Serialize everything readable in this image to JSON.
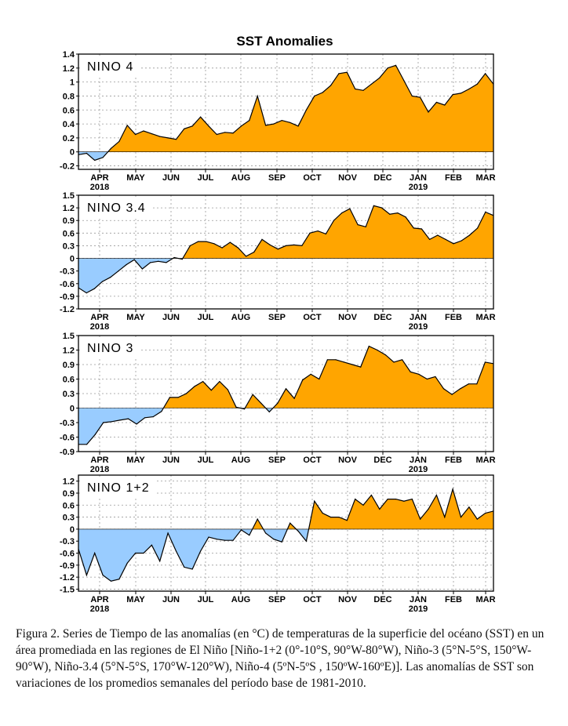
{
  "figure": {
    "title": "SST Anomalies",
    "caption": "Figura 2. Series de Tiempo de las anomalías (en °C) de temperaturas de la superficie del océano (SST) en un área promediada en las regiones de El Niño [Niño-1+2 (0°-10°S, 90°W-80°W), Niño-3 (5°N-5°S, 150°W-90°W), Niño-3.4 (5°N-5°S, 170°W-120°W), Niño-4 (5ºN-5ºS , 150ºW-160ºE)]. Las anomalías de SST son variaciones de los promedios semanales del período base de 1981-2010.",
    "colors": {
      "positive": "#FFA500",
      "negative": "#99CCFF",
      "line": "#000000",
      "grid": "#999999"
    }
  },
  "chart_data": [
    {
      "type": "area",
      "label": "NINO 4",
      "month_labels": [
        "APR",
        "MAY",
        "JUN",
        "JUL",
        "AUG",
        "SEP",
        "OCT",
        "NOV",
        "DEC",
        "JAN",
        "FEB",
        "MAR"
      ],
      "year_labels": [
        {
          "month": "APR",
          "year": "2018"
        },
        {
          "month": "JAN",
          "year": "2019"
        }
      ],
      "yticks": [
        "1.4",
        "1.2",
        "1",
        "0.8",
        "0.6",
        "0.4",
        "0.2",
        "0",
        "-0.2"
      ],
      "ylim": [
        -0.25,
        1.4
      ],
      "values": [
        -0.04,
        -0.02,
        -0.12,
        -0.08,
        0.05,
        0.15,
        0.38,
        0.25,
        0.3,
        0.26,
        0.22,
        0.2,
        0.18,
        0.33,
        0.37,
        0.5,
        0.37,
        0.25,
        0.28,
        0.27,
        0.37,
        0.45,
        0.8,
        0.38,
        0.4,
        0.45,
        0.42,
        0.37,
        0.6,
        0.8,
        0.85,
        0.95,
        1.12,
        1.14,
        0.9,
        0.88,
        0.97,
        1.06,
        1.2,
        1.24,
        1.02,
        0.8,
        0.78,
        0.57,
        0.71,
        0.67,
        0.82,
        0.84,
        0.9,
        0.97,
        1.12,
        0.97
      ]
    },
    {
      "type": "area",
      "label": "NINO 3.4",
      "month_labels": [
        "APR",
        "MAY",
        "JUN",
        "JUL",
        "AUG",
        "SEP",
        "OCT",
        "NOV",
        "DEC",
        "JAN",
        "FEB",
        "MAR"
      ],
      "year_labels": [
        {
          "month": "APR",
          "year": "2018"
        },
        {
          "month": "JAN",
          "year": "2019"
        }
      ],
      "yticks": [
        "1.5",
        "1.2",
        "0.9",
        "0.6",
        "0.3",
        "0",
        "-0.3",
        "-0.6",
        "-0.9",
        "-1.2"
      ],
      "ylim": [
        -1.2,
        1.5
      ],
      "values": [
        -0.7,
        -0.82,
        -0.72,
        -0.55,
        -0.45,
        -0.3,
        -0.15,
        -0.03,
        -0.25,
        -0.1,
        -0.07,
        -0.1,
        0.02,
        -0.02,
        0.3,
        0.4,
        0.4,
        0.35,
        0.25,
        0.38,
        0.25,
        0.05,
        0.15,
        0.45,
        0.32,
        0.22,
        0.3,
        0.32,
        0.3,
        0.6,
        0.65,
        0.58,
        0.9,
        1.08,
        1.18,
        0.8,
        0.75,
        1.25,
        1.2,
        1.05,
        1.08,
        0.98,
        0.72,
        0.7,
        0.45,
        0.55,
        0.45,
        0.35,
        0.42,
        0.55,
        0.72,
        1.1,
        1.02
      ]
    },
    {
      "type": "area",
      "label": "NINO 3",
      "month_labels": [
        "APR",
        "MAY",
        "JUN",
        "JUL",
        "AUG",
        "SEP",
        "OCT",
        "NOV",
        "DEC",
        "JAN",
        "FEB",
        "MAR"
      ],
      "year_labels": [
        {
          "month": "APR",
          "year": "2018"
        },
        {
          "month": "JAN",
          "year": "2019"
        }
      ],
      "yticks": [
        "1.5",
        "1.2",
        "0.9",
        "0.6",
        "0.3",
        "0",
        "-0.3",
        "-0.6",
        "-0.9"
      ],
      "ylim": [
        -0.9,
        1.5
      ],
      "values": [
        -0.75,
        -0.75,
        -0.55,
        -0.3,
        -0.28,
        -0.25,
        -0.22,
        -0.33,
        -0.2,
        -0.18,
        -0.07,
        0.22,
        0.22,
        0.3,
        0.45,
        0.55,
        0.37,
        0.55,
        0.38,
        0.02,
        -0.02,
        0.28,
        0.1,
        -0.08,
        0.1,
        0.4,
        0.2,
        0.58,
        0.7,
        0.6,
        1.0,
        1.0,
        0.95,
        0.9,
        0.85,
        1.28,
        1.2,
        1.1,
        0.95,
        1.0,
        0.75,
        0.7,
        0.6,
        0.65,
        0.4,
        0.28,
        0.4,
        0.5,
        0.5,
        0.95,
        0.92
      ]
    },
    {
      "type": "area",
      "label": "NINO 1+2",
      "month_labels": [
        "APR",
        "MAY",
        "JUN",
        "JUL",
        "AUG",
        "SEP",
        "OCT",
        "NOV",
        "DEC",
        "JAN",
        "FEB",
        "MAR"
      ],
      "year_labels": [
        {
          "month": "APR",
          "year": "2018"
        },
        {
          "month": "JAN",
          "year": "2019"
        }
      ],
      "yticks": [
        "1.2",
        "0.9",
        "0.6",
        "0.3",
        "0",
        "-0.3",
        "-0.6",
        "-0.9",
        "-1.2",
        "-1.5"
      ],
      "ylim": [
        -1.55,
        1.35
      ],
      "values": [
        -0.5,
        -1.15,
        -0.6,
        -1.15,
        -1.3,
        -1.25,
        -0.85,
        -0.6,
        -0.6,
        -0.4,
        -0.8,
        -0.1,
        -0.55,
        -0.95,
        -1.0,
        -0.55,
        -0.2,
        -0.25,
        -0.28,
        -0.28,
        -0.02,
        -0.15,
        0.25,
        -0.1,
        -0.25,
        -0.32,
        0.15,
        -0.05,
        -0.3,
        0.7,
        0.4,
        0.3,
        0.3,
        0.22,
        0.75,
        0.6,
        0.85,
        0.5,
        0.75,
        0.75,
        0.7,
        0.75,
        0.25,
        0.5,
        0.85,
        0.3,
        1.0,
        0.3,
        0.55,
        0.25,
        0.4,
        0.45
      ]
    }
  ]
}
